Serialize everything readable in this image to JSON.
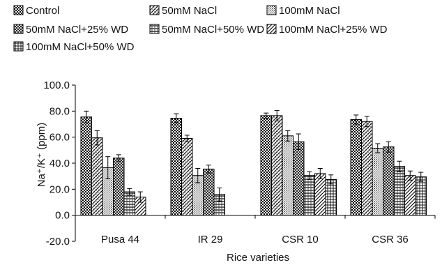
{
  "chart_data": {
    "type": "bar",
    "xlabel": "Rice varieties",
    "ylabel": "Na⁺/K⁺ (ppm)",
    "ylim": [
      -20,
      100
    ],
    "yticks": [
      -20,
      0,
      20,
      40,
      60,
      80,
      100
    ],
    "ytick_labels": [
      "-20.0",
      "0.0",
      "20.0",
      "40.0",
      "60.0",
      "80.0",
      "100.0"
    ],
    "grid": false,
    "legend_position": "top",
    "categories": [
      "Pusa 44",
      "IR 29",
      "CSR 10",
      "CSR 36"
    ],
    "series": [
      {
        "name": "Control",
        "values": [
          75.5,
          74.5,
          76.5,
          73.5
        ],
        "errors": [
          4.5,
          3.5,
          2.0,
          3.5
        ]
      },
      {
        "name": "50mM NaCl",
        "values": [
          59.5,
          59.0,
          76.5,
          72.0
        ],
        "errors": [
          5.5,
          2.5,
          4.0,
          4.0
        ]
      },
      {
        "name": "100mM NaCl",
        "values": [
          36.5,
          30.5,
          61.0,
          51.5
        ],
        "errors": [
          8.5,
          5.5,
          4.0,
          3.5
        ]
      },
      {
        "name": "50mM NaCl+25% WD",
        "values": [
          44.0,
          35.5,
          56.5,
          52.5
        ],
        "errors": [
          2.5,
          3.0,
          6.0,
          4.0
        ]
      },
      {
        "name": "50mM NaCl+50% WD",
        "values": [
          18.0,
          16.0,
          30.5,
          37.5
        ],
        "errors": [
          2.5,
          5.0,
          3.0,
          4.0
        ]
      },
      {
        "name": "100mM NaCl+25% WD",
        "values": [
          14.0,
          null,
          32.0,
          30.5
        ],
        "errors": [
          4.0,
          null,
          4.0,
          3.5
        ]
      },
      {
        "name": "100mM NaCl+50% WD",
        "values": [
          null,
          null,
          27.5,
          29.5
        ],
        "errors": [
          null,
          null,
          3.5,
          3.5
        ]
      }
    ]
  }
}
